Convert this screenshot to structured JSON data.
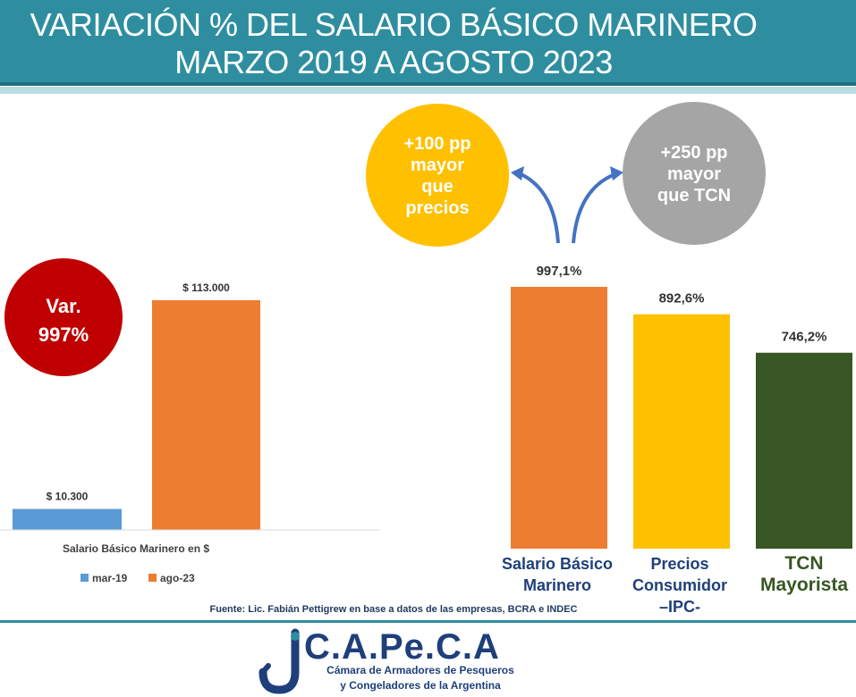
{
  "header": {
    "title_line1": "VARIACIÓN % DEL SALARIO BÁSICO MARINERO",
    "title_line2": "MARZO 2019 A AGOSTO 2023"
  },
  "colors": {
    "header_bg": "#2e8ea0",
    "orange": "#ed7d31",
    "blue": "#5b9bd5",
    "yellow": "#ffc000",
    "green": "#375623",
    "red": "#c00000",
    "gray": "#a5a5a5",
    "navy": "#1f3f7a",
    "arrow": "#4472c4"
  },
  "chart_data": [
    {
      "type": "bar",
      "categories": [
        "Salario Básico Marinero en $"
      ],
      "series": [
        {
          "name": "mar-19",
          "values": [
            10300
          ],
          "label": "$ 10.300",
          "color": "#5b9bd5"
        },
        {
          "name": "ago-23",
          "values": [
            113000
          ],
          "label": "$ 113.000",
          "color": "#ed7d31"
        }
      ],
      "xlabel": "Salario Básico Marinero en $",
      "ylim": [
        0,
        120000
      ],
      "legend": "bottom",
      "annotation": {
        "line1": "Var.",
        "line2": "997%"
      }
    },
    {
      "type": "bar",
      "categories": [
        "Salario Básico Marinero",
        "Precios Consumidor –IPC-",
        "TCN Mayorista"
      ],
      "category_lines": [
        [
          "Salario Básico",
          "Marinero"
        ],
        [
          "Precios",
          "Consumidor",
          "–IPC-"
        ],
        [
          "TCN",
          "Mayorista"
        ]
      ],
      "values": [
        997.1,
        892.6,
        746.2
      ],
      "labels": [
        "997,1%",
        "892,6%",
        "746,2%"
      ],
      "colors": [
        "#ed7d31",
        "#ffc000",
        "#375623"
      ],
      "label_colors": [
        "#1f3f7a",
        "#1f3f7a",
        "#375623"
      ],
      "ylim": [
        0,
        1000
      ],
      "annotations": [
        {
          "lines": [
            "+100 pp",
            "mayor",
            "que",
            "precios"
          ],
          "color": "#ffc000"
        },
        {
          "lines": [
            "+250 pp",
            "mayor",
            "que TCN"
          ],
          "color": "#a5a5a5"
        }
      ]
    }
  ],
  "source": "Fuente: Lic. Fabián Pettigrew en base a datos de las empresas, BCRA e INDEC",
  "logo": {
    "name": "C.A.Pe.C.A",
    "subtitle_line1": "Cámara de Armadores de Pesqueros",
    "subtitle_line2": "y Congeladores de la Argentina"
  }
}
